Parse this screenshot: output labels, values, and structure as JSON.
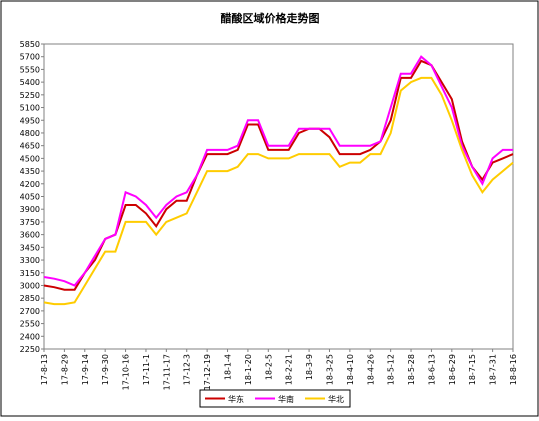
{
  "chart_data": {
    "type": "line",
    "title": "醋酸区域价格走势图",
    "categories": [
      "17-8-13",
      null,
      "17-8-29",
      null,
      "17-9-14",
      null,
      "17-9-30",
      null,
      "17-10-16",
      null,
      "17-11-1",
      null,
      "17-11-17",
      null,
      "17-12-3",
      null,
      "17-12-19",
      null,
      "18-1-4",
      null,
      "18-1-20",
      null,
      "18-2-5",
      null,
      "18-2-21",
      null,
      "18-3-9",
      null,
      "18-3-25",
      null,
      "18-4-10",
      null,
      "18-4-26",
      null,
      "18-5-12",
      null,
      "18-5-28",
      null,
      "18-6-13",
      null,
      "18-6-29",
      null,
      "18-7-15",
      null,
      "18-7-31",
      null,
      "18-8-16"
    ],
    "series": [
      {
        "name": "华东",
        "color": "#cc0000",
        "values": [
          3000,
          2980,
          2950,
          2950,
          3150,
          3300,
          3550,
          3600,
          3950,
          3950,
          3850,
          3700,
          3900,
          4000,
          4000,
          4300,
          4550,
          4550,
          4550,
          4600,
          4900,
          4900,
          4600,
          4600,
          4600,
          4800,
          4850,
          4850,
          4750,
          4550,
          4550,
          4550,
          4600,
          4700,
          4950,
          5450,
          5450,
          5650,
          5600,
          5400,
          5200,
          4700,
          4400,
          4250,
          4450,
          4500,
          4550
        ]
      },
      {
        "name": "华南",
        "color": "#ff00ff",
        "values": [
          3100,
          3080,
          3050,
          3000,
          3150,
          3350,
          3550,
          3600,
          4100,
          4050,
          3950,
          3800,
          3950,
          4050,
          4100,
          4300,
          4600,
          4600,
          4600,
          4650,
          4950,
          4950,
          4650,
          4650,
          4650,
          4850,
          4850,
          4850,
          4850,
          4650,
          4650,
          4650,
          4650,
          4700,
          5100,
          5500,
          5500,
          5700,
          5600,
          5350,
          5100,
          4650,
          4400,
          4200,
          4500,
          4600,
          4600
        ]
      },
      {
        "name": "华北",
        "color": "#ffcc00",
        "values": [
          2800,
          2780,
          2780,
          2800,
          3000,
          3200,
          3400,
          3400,
          3750,
          3750,
          3750,
          3600,
          3750,
          3800,
          3850,
          4100,
          4350,
          4350,
          4350,
          4400,
          4550,
          4550,
          4500,
          4500,
          4500,
          4550,
          4550,
          4550,
          4550,
          4400,
          4450,
          4450,
          4550,
          4550,
          4800,
          5300,
          5400,
          5450,
          5450,
          5250,
          4950,
          4600,
          4300,
          4100,
          4250,
          4350,
          4450
        ]
      }
    ],
    "ylim": [
      2250,
      5850
    ],
    "yticks": [
      2250,
      2400,
      2550,
      2700,
      2850,
      3000,
      3150,
      3300,
      3450,
      3600,
      3750,
      3900,
      4050,
      4200,
      4350,
      4500,
      4650,
      4800,
      4950,
      5100,
      5250,
      5400,
      5550,
      5700,
      5850
    ]
  }
}
